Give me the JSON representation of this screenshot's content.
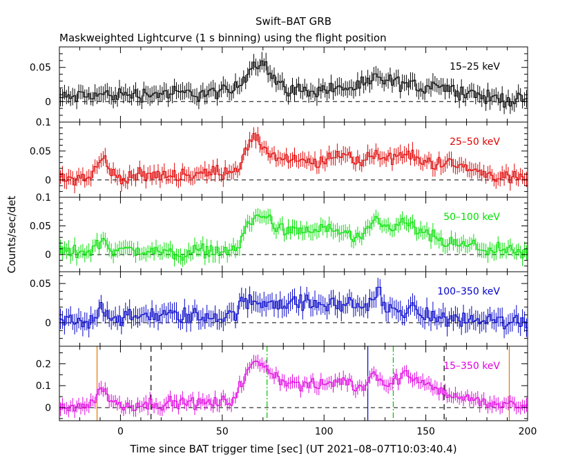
{
  "chart_data": {
    "type": "line",
    "title": "Swift–BAT GRB",
    "subtitle": "Maskweighted Lightcurve (1 s binning) using the flight position",
    "xlabel": "Time since BAT trigger time [sec] (UT 2021–08–07T10:03:40.4)",
    "ylabel": "Counts/sec/det",
    "xlim": [
      -30,
      200
    ],
    "x_ticks": [
      0,
      50,
      100,
      150,
      200
    ],
    "x_tick_labels": [
      "0",
      "50",
      "100",
      "150",
      "200"
    ],
    "grid": false,
    "legend": "in-panel top-right",
    "panels": [
      {
        "band": "15–25 keV",
        "color": "#000000",
        "ylim": [
          -0.03,
          0.08
        ],
        "y_ticks": [
          0,
          0.05
        ],
        "y_tick_labels": [
          "0",
          "0.05"
        ],
        "anchors": [
          [
            -30,
            0.005
          ],
          [
            -10,
            0.01
          ],
          [
            0,
            0.01
          ],
          [
            20,
            0.012
          ],
          [
            40,
            0.012
          ],
          [
            55,
            0.015
          ],
          [
            60,
            0.03
          ],
          [
            65,
            0.055
          ],
          [
            70,
            0.06
          ],
          [
            75,
            0.035
          ],
          [
            80,
            0.02
          ],
          [
            90,
            0.015
          ],
          [
            100,
            0.018
          ],
          [
            110,
            0.02
          ],
          [
            120,
            0.022
          ],
          [
            125,
            0.035
          ],
          [
            130,
            0.03
          ],
          [
            140,
            0.025
          ],
          [
            150,
            0.02
          ],
          [
            155,
            0.03
          ],
          [
            160,
            0.018
          ],
          [
            170,
            0.015
          ],
          [
            180,
            0.005
          ],
          [
            190,
            0.004
          ],
          [
            200,
            0.0
          ]
        ],
        "noise": 0.012,
        "vlines": []
      },
      {
        "band": "25–50 keV",
        "color": "#e00000",
        "ylim": [
          -0.03,
          0.1
        ],
        "y_ticks": [
          0,
          0.05,
          0.1
        ],
        "y_tick_labels": [
          "0",
          "0.05",
          "0.1"
        ],
        "anchors": [
          [
            -30,
            0.003
          ],
          [
            -15,
            0.005
          ],
          [
            -10,
            0.03
          ],
          [
            -7,
            0.04
          ],
          [
            -5,
            0.01
          ],
          [
            0,
            0.005
          ],
          [
            20,
            0.008
          ],
          [
            40,
            0.01
          ],
          [
            50,
            0.015
          ],
          [
            58,
            0.02
          ],
          [
            60,
            0.04
          ],
          [
            65,
            0.07
          ],
          [
            70,
            0.06
          ],
          [
            75,
            0.04
          ],
          [
            80,
            0.035
          ],
          [
            90,
            0.03
          ],
          [
            100,
            0.03
          ],
          [
            110,
            0.05
          ],
          [
            115,
            0.03
          ],
          [
            120,
            0.035
          ],
          [
            125,
            0.05
          ],
          [
            130,
            0.035
          ],
          [
            140,
            0.045
          ],
          [
            150,
            0.03
          ],
          [
            160,
            0.03
          ],
          [
            170,
            0.02
          ],
          [
            180,
            0.01
          ],
          [
            190,
            0.005
          ],
          [
            200,
            0.003
          ]
        ],
        "noise": 0.013,
        "vlines": []
      },
      {
        "band": "50–100 keV",
        "color": "#00e000",
        "ylim": [
          -0.03,
          0.1
        ],
        "y_ticks": [
          0,
          0.05,
          0.1
        ],
        "y_tick_labels": [
          "0",
          "0.05",
          "0.1"
        ],
        "anchors": [
          [
            -30,
            0.005
          ],
          [
            -15,
            0.005
          ],
          [
            -10,
            0.02
          ],
          [
            -8,
            0.03
          ],
          [
            -5,
            0.01
          ],
          [
            0,
            0.008
          ],
          [
            20,
            0.005
          ],
          [
            30,
            0.0
          ],
          [
            40,
            0.008
          ],
          [
            55,
            0.005
          ],
          [
            58,
            0.01
          ],
          [
            60,
            0.04
          ],
          [
            65,
            0.06
          ],
          [
            70,
            0.07
          ],
          [
            75,
            0.055
          ],
          [
            80,
            0.04
          ],
          [
            90,
            0.04
          ],
          [
            100,
            0.045
          ],
          [
            110,
            0.04
          ],
          [
            115,
            0.025
          ],
          [
            120,
            0.03
          ],
          [
            125,
            0.06
          ],
          [
            130,
            0.045
          ],
          [
            140,
            0.055
          ],
          [
            150,
            0.035
          ],
          [
            160,
            0.02
          ],
          [
            170,
            0.015
          ],
          [
            180,
            0.01
          ],
          [
            190,
            0.005
          ],
          [
            200,
            0.0
          ]
        ],
        "noise": 0.013,
        "vlines": []
      },
      {
        "band": "100–350 keV",
        "color": "#0000c8",
        "ylim": [
          -0.03,
          0.065
        ],
        "y_ticks": [
          0,
          0.05
        ],
        "y_tick_labels": [
          "0",
          "0.05"
        ],
        "anchors": [
          [
            -30,
            0.002
          ],
          [
            -15,
            0.0
          ],
          [
            -10,
            0.02
          ],
          [
            -5,
            0.01
          ],
          [
            0,
            0.005
          ],
          [
            20,
            0.01
          ],
          [
            40,
            0.008
          ],
          [
            55,
            0.008
          ],
          [
            60,
            0.025
          ],
          [
            70,
            0.028
          ],
          [
            80,
            0.025
          ],
          [
            90,
            0.025
          ],
          [
            100,
            0.022
          ],
          [
            110,
            0.025
          ],
          [
            120,
            0.02
          ],
          [
            127,
            0.04
          ],
          [
            130,
            0.015
          ],
          [
            140,
            0.018
          ],
          [
            150,
            0.01
          ],
          [
            160,
            0.005
          ],
          [
            180,
            0.003
          ],
          [
            200,
            0.0
          ]
        ],
        "noise": 0.012,
        "vlines": []
      },
      {
        "band": "15–350 keV",
        "color": "#e000e0",
        "ylim": [
          -0.06,
          0.28
        ],
        "y_ticks": [
          0,
          0.1,
          0.2
        ],
        "y_tick_labels": [
          "0",
          "0.1",
          "0.2"
        ],
        "anchors": [
          [
            -30,
            0.005
          ],
          [
            -15,
            0.01
          ],
          [
            -10,
            0.08
          ],
          [
            -7,
            0.09
          ],
          [
            -5,
            0.03
          ],
          [
            0,
            0.01
          ],
          [
            20,
            0.02
          ],
          [
            40,
            0.02
          ],
          [
            55,
            0.03
          ],
          [
            60,
            0.12
          ],
          [
            65,
            0.2
          ],
          [
            70,
            0.2
          ],
          [
            75,
            0.15
          ],
          [
            80,
            0.12
          ],
          [
            90,
            0.1
          ],
          [
            100,
            0.1
          ],
          [
            110,
            0.13
          ],
          [
            115,
            0.09
          ],
          [
            120,
            0.1
          ],
          [
            125,
            0.17
          ],
          [
            130,
            0.1
          ],
          [
            140,
            0.15
          ],
          [
            150,
            0.12
          ],
          [
            160,
            0.06
          ],
          [
            170,
            0.04
          ],
          [
            180,
            0.02
          ],
          [
            190,
            0.01
          ],
          [
            200,
            0.005
          ]
        ],
        "noise": 0.03,
        "vlines": [
          {
            "x": -11.5,
            "color": "#e07800",
            "style": "solid"
          },
          {
            "x": 15,
            "color": "#000000",
            "style": "dashed"
          },
          {
            "x": 72,
            "color": "#00c000",
            "style": "dashdot"
          },
          {
            "x": 121.5,
            "color": "#0000c8",
            "style": "solid"
          },
          {
            "x": 134,
            "color": "#00c000",
            "style": "dashdot"
          },
          {
            "x": 159,
            "color": "#000000",
            "style": "dashed"
          },
          {
            "x": 191,
            "color": "#e07800",
            "style": "solid"
          }
        ]
      }
    ]
  }
}
